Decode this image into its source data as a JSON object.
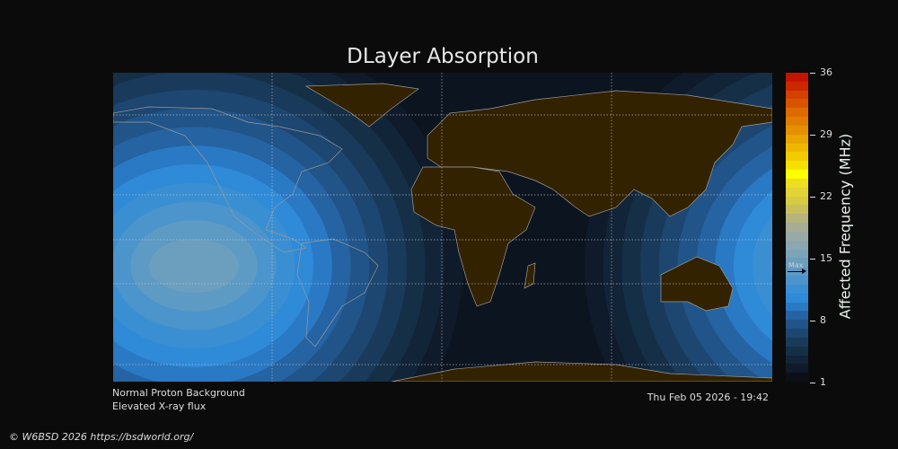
{
  "title": "DLayer Absorption",
  "colorbar": {
    "label": "Affected Frequency (MHz)",
    "ticks": [
      "36",
      "29",
      "22",
      "15",
      "8",
      "1"
    ],
    "range": [
      1,
      36
    ],
    "max_marker_label": "Max",
    "max_marker_value": 13.5,
    "colors": [
      "#0c0f17",
      "#0f1a2a",
      "#122437",
      "#152f47",
      "#193a5a",
      "#1d4670",
      "#215488",
      "#2563a2",
      "#2a79c4",
      "#2f8ad8",
      "#3a8fd2",
      "#4b94cc",
      "#5d9ac4",
      "#6c9fbe",
      "#7ca4b8",
      "#8ba8b0",
      "#99aaa6",
      "#a7ad94",
      "#b6b37c",
      "#c8bf5c",
      "#d8cb44",
      "#e4d335",
      "#eede22",
      "#ffff00",
      "#f7e000",
      "#f2cc00",
      "#eeb800",
      "#eaa500",
      "#e59000",
      "#e07d00",
      "#dc6a00",
      "#d85500",
      "#d44000",
      "#cc2800",
      "#c41400"
    ]
  },
  "status": {
    "proton": "Normal Proton Background",
    "xray": "Elevated X-ray flux",
    "timestamp": "Thu Feb 05 2026 - 19:42"
  },
  "copyright": "© W6BSD 2026 https://bsdworld.org/",
  "map": {
    "land_color": "#332200",
    "coast_color": "#9a9a9a",
    "night_color": "#0c1420"
  }
}
